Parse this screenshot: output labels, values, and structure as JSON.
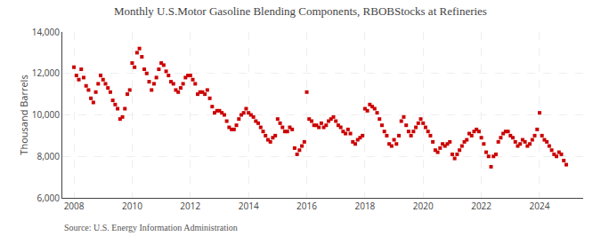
{
  "chart_data": {
    "type": "scatter",
    "title": "Monthly U.S.Motor Gasoline Blending Components, RBOBStocks at Refineries",
    "y_label": "Thousand Barrels",
    "annotations": [
      "Source: U.S. Energy Information Administration"
    ],
    "color": "#cc0000",
    "marker": "square",
    "grid": true,
    "xlim": [
      2007.6,
      2025.5
    ],
    "xticks": [
      2008,
      2010,
      2012,
      2014,
      2016,
      2018,
      2020,
      2022,
      2024
    ],
    "ylim": [
      6000,
      14000
    ],
    "yticks": [
      {
        "value": 6000,
        "label": "6,000"
      },
      {
        "value": 8000,
        "label": "8,000"
      },
      {
        "value": 10000,
        "label": "10,000"
      },
      {
        "value": 12000,
        "label": "12,000"
      },
      {
        "value": 14000,
        "label": "14,000"
      }
    ],
    "x": [
      2008.0,
      2008.083,
      2008.167,
      2008.25,
      2008.333,
      2008.417,
      2008.5,
      2008.583,
      2008.667,
      2008.75,
      2008.833,
      2008.917,
      2009.0,
      2009.083,
      2009.167,
      2009.25,
      2009.333,
      2009.417,
      2009.5,
      2009.583,
      2009.667,
      2009.75,
      2009.833,
      2009.917,
      2010.0,
      2010.083,
      2010.167,
      2010.25,
      2010.333,
      2010.417,
      2010.5,
      2010.583,
      2010.667,
      2010.75,
      2010.833,
      2010.917,
      2011.0,
      2011.083,
      2011.167,
      2011.25,
      2011.333,
      2011.417,
      2011.5,
      2011.583,
      2011.667,
      2011.75,
      2011.833,
      2011.917,
      2012.0,
      2012.083,
      2012.167,
      2012.25,
      2012.333,
      2012.417,
      2012.5,
      2012.583,
      2012.667,
      2012.75,
      2012.833,
      2012.917,
      2013.0,
      2013.083,
      2013.167,
      2013.25,
      2013.333,
      2013.417,
      2013.5,
      2013.583,
      2013.667,
      2013.75,
      2013.833,
      2013.917,
      2014.0,
      2014.083,
      2014.167,
      2014.25,
      2014.333,
      2014.417,
      2014.5,
      2014.583,
      2014.667,
      2014.75,
      2014.833,
      2014.917,
      2015.0,
      2015.083,
      2015.167,
      2015.25,
      2015.333,
      2015.417,
      2015.5,
      2015.583,
      2015.667,
      2015.75,
      2015.833,
      2015.917,
      2016.0,
      2016.083,
      2016.167,
      2016.25,
      2016.333,
      2016.417,
      2016.5,
      2016.583,
      2016.667,
      2016.75,
      2016.833,
      2016.917,
      2017.0,
      2017.083,
      2017.167,
      2017.25,
      2017.333,
      2017.417,
      2017.5,
      2017.583,
      2017.667,
      2017.75,
      2017.833,
      2017.917,
      2018.0,
      2018.083,
      2018.167,
      2018.25,
      2018.333,
      2018.417,
      2018.5,
      2018.583,
      2018.667,
      2018.75,
      2018.833,
      2018.917,
      2019.0,
      2019.083,
      2019.167,
      2019.25,
      2019.333,
      2019.417,
      2019.5,
      2019.583,
      2019.667,
      2019.75,
      2019.833,
      2019.917,
      2020.0,
      2020.083,
      2020.167,
      2020.25,
      2020.333,
      2020.417,
      2020.5,
      2020.583,
      2020.667,
      2020.75,
      2020.833,
      2020.917,
      2021.0,
      2021.083,
      2021.167,
      2021.25,
      2021.333,
      2021.417,
      2021.5,
      2021.583,
      2021.667,
      2021.75,
      2021.833,
      2021.917,
      2022.0,
      2022.083,
      2022.167,
      2022.25,
      2022.333,
      2022.417,
      2022.5,
      2022.583,
      2022.667,
      2022.75,
      2022.833,
      2022.917,
      2023.0,
      2023.083,
      2023.167,
      2023.25,
      2023.333,
      2023.417,
      2023.5,
      2023.583,
      2023.667,
      2023.75,
      2023.833,
      2023.917,
      2024.0,
      2024.083,
      2024.167,
      2024.25,
      2024.333,
      2024.417,
      2024.5,
      2024.583,
      2024.667,
      2024.75,
      2024.833,
      2024.917
    ],
    "values": [
      12300,
      11900,
      11700,
      12200,
      11800,
      11400,
      11200,
      10800,
      10600,
      11100,
      11500,
      11900,
      11700,
      11500,
      11300,
      11100,
      10700,
      10500,
      10300,
      9800,
      9900,
      10300,
      11000,
      11200,
      12500,
      12300,
      13000,
      13200,
      12800,
      12200,
      12000,
      11600,
      11200,
      11500,
      11800,
      12200,
      12500,
      12400,
      12100,
      11900,
      11600,
      11500,
      11200,
      11100,
      11300,
      11500,
      11800,
      11900,
      11900,
      11700,
      11500,
      11000,
      11100,
      11100,
      11000,
      11200,
      10800,
      10400,
      10100,
      10200,
      10200,
      10100,
      10000,
      9700,
      9400,
      9300,
      9300,
      9500,
      9800,
      10000,
      10100,
      10300,
      10100,
      10000,
      9900,
      9700,
      9600,
      9400,
      9200,
      9000,
      8800,
      8700,
      8900,
      9000,
      9800,
      9600,
      9400,
      9200,
      9200,
      9400,
      9300,
      8400,
      8100,
      8300,
      8500,
      8700,
      11100,
      9800,
      9700,
      9500,
      9500,
      9400,
      9600,
      9400,
      9500,
      9700,
      9800,
      9900,
      9700,
      9500,
      9400,
      9200,
      9100,
      9300,
      9100,
      8700,
      8600,
      8800,
      8900,
      9000,
      10300,
      10200,
      10500,
      10400,
      10300,
      10100,
      9800,
      9500,
      9200,
      9000,
      8600,
      8500,
      8800,
      8600,
      9000,
      9700,
      9900,
      9500,
      9200,
      9000,
      9200,
      9400,
      9600,
      9800,
      9600,
      9400,
      9200,
      9000,
      8700,
      8300,
      8200,
      8400,
      8600,
      8500,
      8600,
      8700,
      8100,
      7900,
      8100,
      8300,
      8500,
      8700,
      8800,
      9100,
      9000,
      9200,
      9300,
      9200,
      8900,
      8600,
      8200,
      8000,
      7500,
      8000,
      8100,
      8700,
      8900,
      9100,
      9200,
      9200,
      9000,
      8900,
      8700,
      8500,
      8600,
      8800,
      8700,
      8500,
      8600,
      8800,
      9000,
      9300,
      10100,
      9000,
      8800,
      8700,
      8500,
      8300,
      8100,
      8000,
      8200,
      8100,
      7800,
      7600
    ]
  }
}
